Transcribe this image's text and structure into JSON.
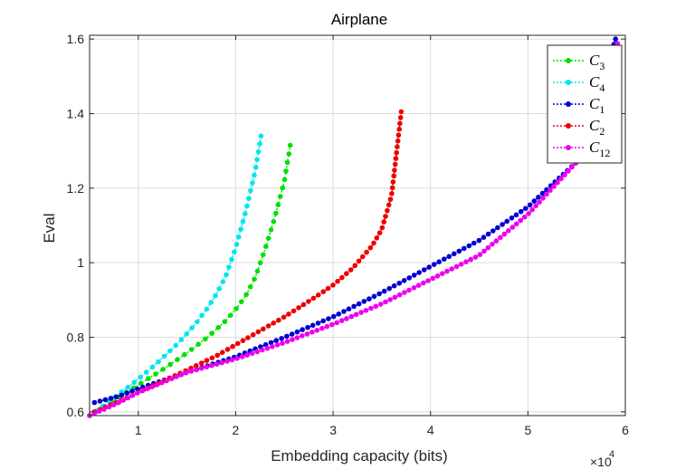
{
  "chart_data": {
    "type": "line",
    "title": "Airplane",
    "xlabel": "Embedding capacity (bits)",
    "ylabel": "Eval",
    "x_multiplier_label": "×10",
    "x_multiplier_exponent": "4",
    "xlim": [
      0.5,
      6
    ],
    "ylim": [
      0.59,
      1.61
    ],
    "xticks": [
      1,
      2,
      3,
      4,
      5,
      6
    ],
    "yticks": [
      0.6,
      0.8,
      1,
      1.2,
      1.4,
      1.6
    ],
    "yticklabels": [
      "0.6",
      "0.8",
      "1",
      "1.2",
      "1.4",
      "1.6"
    ],
    "grid": true,
    "legend_position": "top-right",
    "series": [
      {
        "name": "C",
        "subscript": "3",
        "color": "#00e000",
        "points": [
          [
            0.5,
            0.59
          ],
          [
            0.6,
            0.606
          ],
          [
            0.7,
            0.623
          ],
          [
            0.8,
            0.639
          ],
          [
            0.9,
            0.656
          ],
          [
            1.0,
            0.672
          ],
          [
            1.1,
            0.689
          ],
          [
            1.2,
            0.705
          ],
          [
            1.3,
            0.722
          ],
          [
            1.4,
            0.74
          ],
          [
            1.5,
            0.758
          ],
          [
            1.6,
            0.778
          ],
          [
            1.7,
            0.798
          ],
          [
            1.8,
            0.821
          ],
          [
            1.9,
            0.845
          ],
          [
            2.0,
            0.875
          ],
          [
            2.1,
            0.91
          ],
          [
            2.2,
            0.96
          ],
          [
            2.3,
            1.035
          ],
          [
            2.4,
            1.12
          ],
          [
            2.5,
            1.22
          ],
          [
            2.56,
            1.315
          ]
        ]
      },
      {
        "name": "C",
        "subscript": "4",
        "color": "#00e5ee",
        "points": [
          [
            0.5,
            0.59
          ],
          [
            0.6,
            0.608
          ],
          [
            0.7,
            0.628
          ],
          [
            0.8,
            0.648
          ],
          [
            0.9,
            0.667
          ],
          [
            1.0,
            0.688
          ],
          [
            1.1,
            0.71
          ],
          [
            1.2,
            0.733
          ],
          [
            1.3,
            0.757
          ],
          [
            1.4,
            0.782
          ],
          [
            1.5,
            0.81
          ],
          [
            1.6,
            0.84
          ],
          [
            1.7,
            0.875
          ],
          [
            1.8,
            0.915
          ],
          [
            1.9,
            0.965
          ],
          [
            2.0,
            1.04
          ],
          [
            2.1,
            1.135
          ],
          [
            2.2,
            1.245
          ],
          [
            2.26,
            1.34
          ]
        ]
      },
      {
        "name": "C",
        "subscript": "1",
        "color": "#0000d0",
        "points": [
          [
            0.55,
            0.625
          ],
          [
            0.8,
            0.642
          ],
          [
            1.0,
            0.662
          ],
          [
            1.5,
            0.706
          ],
          [
            2.0,
            0.748
          ],
          [
            2.5,
            0.8
          ],
          [
            3.0,
            0.855
          ],
          [
            3.5,
            0.92
          ],
          [
            4.0,
            0.99
          ],
          [
            4.5,
            1.06
          ],
          [
            5.0,
            1.15
          ],
          [
            5.5,
            1.27
          ],
          [
            5.9,
            1.6
          ]
        ]
      },
      {
        "name": "C",
        "subscript": "2",
        "color": "#ee0000",
        "points": [
          [
            0.55,
            0.6
          ],
          [
            0.8,
            0.628
          ],
          [
            1.0,
            0.652
          ],
          [
            1.2,
            0.676
          ],
          [
            1.5,
            0.712
          ],
          [
            1.8,
            0.75
          ],
          [
            2.0,
            0.78
          ],
          [
            2.2,
            0.81
          ],
          [
            2.5,
            0.855
          ],
          [
            2.8,
            0.905
          ],
          [
            3.0,
            0.94
          ],
          [
            3.2,
            0.985
          ],
          [
            3.4,
            1.045
          ],
          [
            3.5,
            1.09
          ],
          [
            3.6,
            1.18
          ],
          [
            3.7,
            1.405
          ]
        ]
      },
      {
        "name": "C",
        "subscript": "12",
        "color": "#ee00ee",
        "points": [
          [
            0.5,
            0.59
          ],
          [
            0.8,
            0.625
          ],
          [
            1.0,
            0.652
          ],
          [
            1.5,
            0.706
          ],
          [
            2.0,
            0.742
          ],
          [
            2.5,
            0.786
          ],
          [
            3.0,
            0.835
          ],
          [
            3.5,
            0.89
          ],
          [
            4.0,
            0.955
          ],
          [
            4.5,
            1.02
          ],
          [
            5.0,
            1.13
          ],
          [
            5.5,
            1.27
          ],
          [
            5.92,
            1.588
          ]
        ]
      }
    ]
  }
}
